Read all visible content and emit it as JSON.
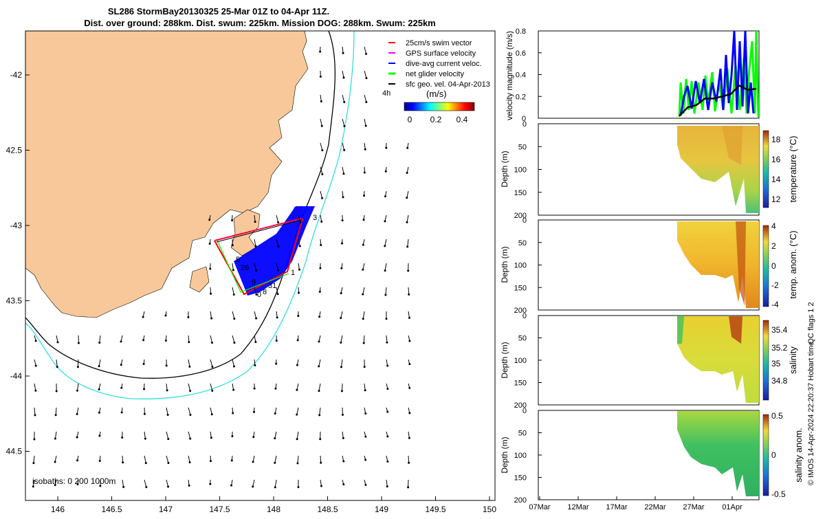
{
  "title": {
    "line1": "SL286 StormBay20130325 25-Mar 01Z to 04-Apr 11Z.",
    "line2": "Dist. over ground: 288km. Dist. swum: 225km. Mission DOG: 288km. Swum: 225km"
  },
  "map": {
    "lon_ticks": [
      "146",
      "146.5",
      "147",
      "147.5",
      "148",
      "148.5",
      "149",
      "149.5",
      "150"
    ],
    "lat_ticks": [
      "-42",
      "42.5",
      "-43",
      "43.5",
      "-44",
      "44.5"
    ],
    "legend": [
      {
        "label": "25cm/s swim vector",
        "color": "#ff0000"
      },
      {
        "label": "GPS surface velocity",
        "color": "#ff00ff"
      },
      {
        "label": "dive-avg current veloc.",
        "color": "#0000ff"
      },
      {
        "label": "net glider velocity",
        "color": "#00ff00"
      },
      {
        "label": "sfc geo. vel. 04-Apr-2013",
        "color": "#000000"
      }
    ],
    "scale_vector_label": "4h",
    "colorbar": {
      "unit": "(m/s)",
      "ticks": [
        "0",
        "0.2",
        "0.4"
      ]
    },
    "isobaths_label": "isobaths: 0   200  1000m",
    "track_labels": [
      "5",
      "26",
      "1",
      "9",
      "31",
      "3",
      "8",
      "0",
      "3"
    ],
    "land_color": "#f9c89a",
    "isobath_200_color": "#000000",
    "isobath_1000_color": "#33dddd"
  },
  "velocity_panel": {
    "ylabel": "velocity magnitude (m/s)",
    "yticks": [
      "0.8",
      "0.6",
      "0.4",
      "0.2",
      "0"
    ],
    "series": [
      {
        "name": "GPS surface velocity",
        "color": "#00ff00"
      },
      {
        "name": "dive-avg current veloc.",
        "color": "#0000ff"
      },
      {
        "name": "net glider velocity",
        "color": "#000000"
      }
    ]
  },
  "section_panels": [
    {
      "ylabel": "Depth (m)",
      "yticks": [
        "0",
        "50",
        "100",
        "150",
        "200"
      ],
      "cbar_label": "temperature (°C)",
      "cbar_ticks": [
        "18",
        "16",
        "14",
        "12"
      ]
    },
    {
      "ylabel": "Depth (m)",
      "yticks": [
        "0",
        "50",
        "100",
        "150",
        "200"
      ],
      "cbar_label": "temp. anom. (°C)",
      "cbar_ticks": [
        "4",
        "2",
        "0",
        "-2",
        "-4"
      ]
    },
    {
      "ylabel": "Depth (m)",
      "yticks": [
        "0",
        "50",
        "100",
        "150",
        "200"
      ],
      "cbar_label": "salinity",
      "cbar_ticks": [
        "35.4",
        "35.2",
        "35",
        "34.8"
      ]
    },
    {
      "ylabel": "Depth (m)",
      "yticks": [
        "0",
        "50",
        "100",
        "150",
        "200"
      ],
      "cbar_label": "salinity anom.",
      "cbar_ticks": [
        "0.5",
        "0",
        "-0.5"
      ]
    }
  ],
  "time_axis": [
    "07Mar",
    "12Mar",
    "17Mar",
    "22Mar",
    "27Mar",
    "01Apr"
  ],
  "side_note_1": "QC flags 1  2",
  "side_note_2": "© IMOS 14-Apr-2024 22:20:37 Hobart time.",
  "chart_data": [
    {
      "type": "line",
      "title": "",
      "ylabel": "velocity magnitude (m/s)",
      "ylim": [
        0,
        0.8
      ],
      "x": [
        "26Mar",
        "27Mar",
        "28Mar",
        "29Mar",
        "30Mar",
        "31Mar",
        "01Apr",
        "02Apr",
        "03Apr",
        "04Apr"
      ],
      "series": [
        {
          "name": "net glider velocity",
          "values": [
            0.02,
            0.1,
            0.12,
            0.18,
            0.18,
            0.2,
            0.22,
            0.3,
            0.26,
            0.27
          ]
        }
      ]
    }
  ]
}
